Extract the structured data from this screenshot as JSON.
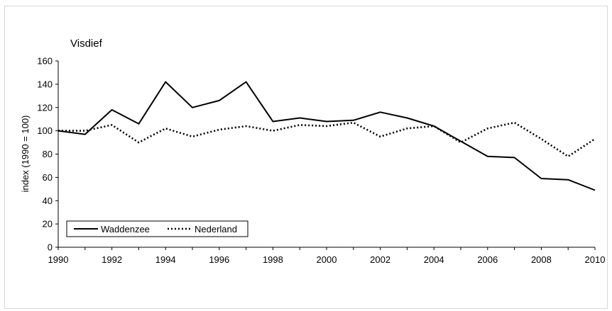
{
  "chart_data": {
    "type": "line",
    "title": "Visdief",
    "xlabel": "",
    "ylabel": "index (1990 = 100)",
    "xlim": [
      1990,
      2010
    ],
    "ylim": [
      0,
      160
    ],
    "x_ticks": [
      "1990",
      "1992",
      "1994",
      "1996",
      "1998",
      "2000",
      "2002",
      "2004",
      "2006",
      "2008",
      "2010"
    ],
    "y_ticks": [
      "0",
      "20",
      "40",
      "60",
      "80",
      "100",
      "120",
      "140",
      "160"
    ],
    "grid": false,
    "legend_position": "bottom-left",
    "x": [
      1990,
      1991,
      1992,
      1993,
      1994,
      1995,
      1996,
      1997,
      1998,
      1999,
      2000,
      2001,
      2002,
      2003,
      2004,
      2005,
      2006,
      2007,
      2008,
      2009,
      2010
    ],
    "series": [
      {
        "name": "Waddenzee",
        "style": "solid",
        "color": "#000000",
        "values": [
          100,
          97,
          118,
          106,
          142,
          120,
          126,
          142,
          108,
          111,
          108,
          109,
          116,
          111,
          104,
          91,
          78,
          77,
          59,
          58,
          49
        ]
      },
      {
        "name": "Nederland",
        "style": "dotted",
        "color": "#000000",
        "values": [
          100,
          100,
          105,
          90,
          102,
          95,
          101,
          104,
          100,
          105,
          104,
          107,
          95,
          102,
          104,
          90,
          102,
          107,
          93,
          78,
          93
        ]
      }
    ]
  }
}
